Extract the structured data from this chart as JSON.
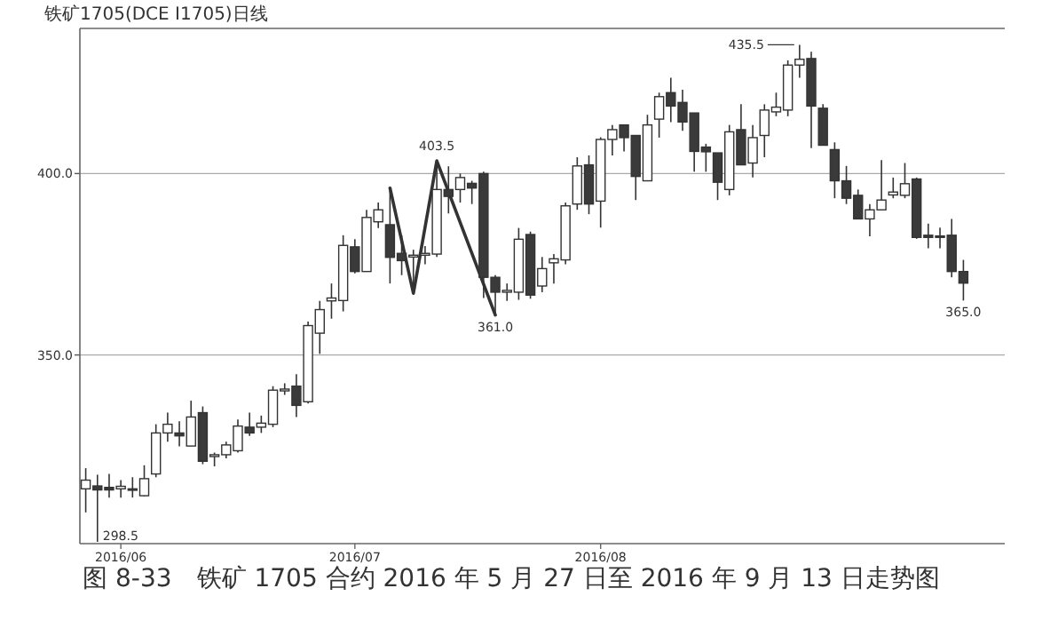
{
  "chart_data": {
    "type": "candlestick",
    "title": "铁矿1705(DCE I1705)日线",
    "categories": [
      null,
      null,
      null,
      "2016/06",
      null,
      null,
      null,
      null,
      null,
      null,
      null,
      null,
      null,
      null,
      null,
      null,
      null,
      null,
      null,
      null,
      null,
      null,
      null,
      "2016/07",
      null,
      null,
      null,
      null,
      null,
      null,
      null,
      null,
      null,
      null,
      null,
      null,
      null,
      null,
      null,
      null,
      null,
      null,
      null,
      null,
      "2016/08",
      null,
      null,
      null,
      null,
      null,
      null,
      null,
      null,
      null,
      null,
      null,
      null,
      null,
      null,
      null,
      null,
      null,
      null,
      null,
      null,
      null,
      null,
      null,
      null,
      null,
      null,
      null,
      null,
      null,
      null,
      null
    ],
    "ohlc": [
      [
        313.1,
        318.8,
        306.6,
        315.5
      ],
      [
        313.9,
        317,
        298.5,
        312.8
      ],
      [
        313.5,
        317.2,
        310.7,
        312.8
      ],
      [
        313.1,
        315.5,
        310.7,
        313.8
      ],
      [
        313.1,
        316.3,
        310.7,
        312.8
      ],
      [
        311.2,
        319.6,
        311,
        315.9
      ],
      [
        317.2,
        330.9,
        316.3,
        328.5
      ],
      [
        328.5,
        334.1,
        326.1,
        330.9
      ],
      [
        328.5,
        331.7,
        324.8,
        327.7
      ],
      [
        324.9,
        337.4,
        324.9,
        332.9
      ],
      [
        334.1,
        335.8,
        319.9,
        320.7
      ],
      [
        322,
        323.1,
        319.3,
        322.5
      ],
      [
        322.5,
        326.1,
        321.5,
        325.2
      ],
      [
        323.6,
        332.2,
        323.1,
        330.4
      ],
      [
        330.1,
        334.1,
        327.7,
        328.5
      ],
      [
        330.1,
        333.3,
        328.5,
        331.2
      ],
      [
        330.9,
        341.4,
        330.1,
        340.3
      ],
      [
        340.1,
        342.2,
        339,
        340.6
      ],
      [
        341.4,
        344.7,
        332.9,
        336.1
      ],
      [
        337.1,
        359.2,
        336.6,
        358.1
      ],
      [
        356,
        364.9,
        350.3,
        362.5
      ],
      [
        364.9,
        369.7,
        360,
        365.7
      ],
      [
        365,
        383,
        362,
        380.2
      ],
      [
        379.8,
        381.9,
        372.5,
        373
      ],
      [
        373,
        390,
        373,
        387.9
      ],
      [
        386.7,
        392,
        385,
        390
      ],
      [
        385.9,
        396,
        369.7,
        376.9
      ],
      [
        378,
        383,
        372,
        376
      ],
      [
        377,
        379,
        367,
        377.5
      ],
      [
        377.5,
        380,
        375,
        378
      ],
      [
        377.8,
        403.5,
        377,
        395.6
      ],
      [
        395.6,
        402,
        389,
        393.7
      ],
      [
        395.6,
        400,
        392,
        398.9
      ],
      [
        397.3,
        398,
        391.6,
        396
      ],
      [
        400,
        400.5,
        365.7,
        371.4
      ],
      [
        371.4,
        372,
        361,
        367.3
      ],
      [
        367.3,
        369.7,
        364.9,
        367.8
      ],
      [
        367.3,
        385,
        365.2,
        381.9
      ],
      [
        383.2,
        384,
        365.5,
        366.5
      ],
      [
        369,
        377,
        367.3,
        373.8
      ],
      [
        375.4,
        377.8,
        369.7,
        376.5
      ],
      [
        376.2,
        392,
        375,
        391.1
      ],
      [
        391.6,
        404.5,
        390,
        402.1
      ],
      [
        402.4,
        405,
        388.8,
        391.6
      ],
      [
        392.4,
        410,
        385.1,
        409.4
      ],
      [
        409.4,
        413.4,
        405,
        412.1
      ],
      [
        413.4,
        413.5,
        406.1,
        409.9
      ],
      [
        410.5,
        410.5,
        392.7,
        399.2
      ],
      [
        398,
        416.2,
        398,
        413.4
      ],
      [
        415,
        422.3,
        409.9,
        421.2
      ],
      [
        422.3,
        426.4,
        414.2,
        418.6
      ],
      [
        419.6,
        423.1,
        411.8,
        414.2
      ],
      [
        416.7,
        416.7,
        400.5,
        406.1
      ],
      [
        407.3,
        408.2,
        400.5,
        406
      ],
      [
        405.7,
        405.7,
        392.7,
        397.6
      ],
      [
        395.6,
        413.4,
        394,
        411.5
      ],
      [
        412.1,
        419.1,
        402.4,
        402.4
      ],
      [
        402.9,
        413.4,
        398.9,
        409.9
      ],
      [
        410.5,
        419.1,
        404.5,
        417.5
      ],
      [
        417,
        422.3,
        415.8,
        418.3
      ],
      [
        417.5,
        431.2,
        415.8,
        429.9
      ],
      [
        429.9,
        435.5,
        426.4,
        431.5
      ],
      [
        431.7,
        433.6,
        407,
        418.6
      ],
      [
        418,
        419.1,
        407.8,
        407.8
      ],
      [
        406.6,
        408.6,
        393.2,
        398
      ],
      [
        398,
        402.1,
        391.6,
        393.2
      ],
      [
        394,
        395.6,
        387.5,
        387.5
      ],
      [
        387.5,
        391.6,
        382.7,
        390
      ],
      [
        390,
        403.7,
        390,
        392.7
      ],
      [
        394.1,
        398.9,
        393.2,
        394.9
      ],
      [
        394,
        402.9,
        393.2,
        397.2
      ],
      [
        398.5,
        398.9,
        382,
        382.4
      ],
      [
        383,
        386.2,
        379.4,
        382.4
      ],
      [
        382.8,
        385.1,
        379.4,
        382.4
      ],
      [
        383,
        387.5,
        371.4,
        373
      ],
      [
        373,
        376.2,
        365,
        369.8
      ]
    ],
    "series": [
      {
        "type": "line",
        "color": "#333333",
        "values": [
          null,
          null,
          null,
          null,
          null,
          null,
          null,
          null,
          null,
          null,
          null,
          null,
          null,
          null,
          null,
          null,
          null,
          null,
          null,
          null,
          null,
          null,
          null,
          null,
          null,
          null,
          396,
          null,
          367,
          null,
          403.5,
          null,
          null,
          null,
          null,
          361,
          null,
          null,
          null,
          null,
          null,
          null,
          null,
          null,
          null,
          null,
          null,
          null,
          null,
          null,
          null,
          null,
          null,
          null,
          null,
          null,
          null,
          null,
          null,
          null,
          null,
          null,
          null,
          null,
          null,
          null,
          null,
          null,
          null,
          null,
          null,
          null,
          null,
          null,
          null,
          null
        ]
      }
    ],
    "ylim": [
      298,
      440
    ],
    "yticks": [
      {
        "value": 350,
        "label": "350.0"
      },
      {
        "value": 400,
        "label": "400.0"
      }
    ],
    "grid": "y",
    "annotations": [
      "298.5",
      "403.5",
      "361.0",
      "435.5",
      "365.0",
      "图 8-33　铁矿 1705 合约 2016 年 5 月 27 日至 2016 年 9 月 13 日走势图"
    ]
  }
}
